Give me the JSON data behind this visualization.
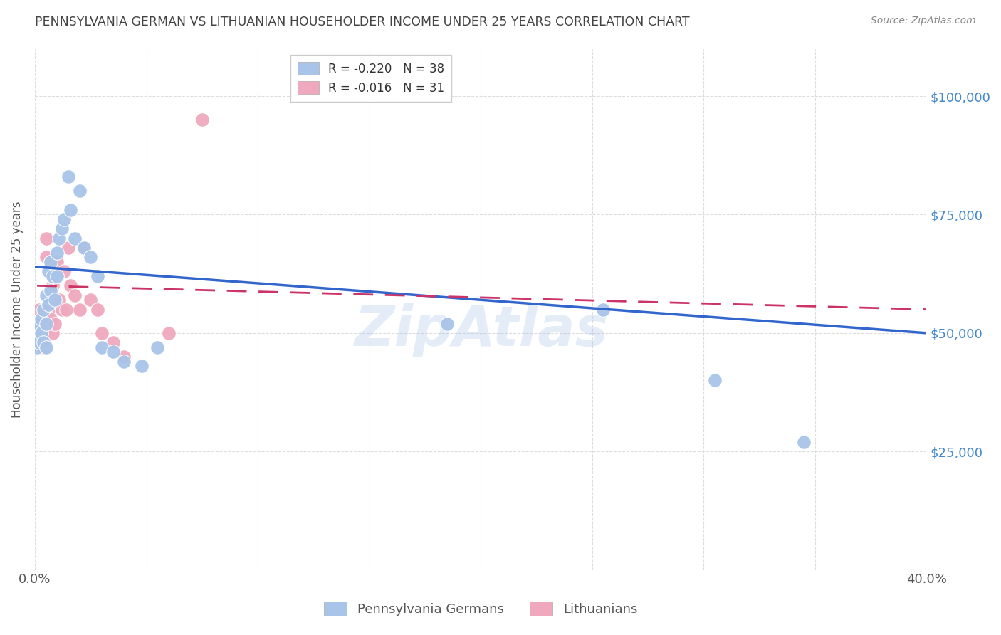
{
  "title": "PENNSYLVANIA GERMAN VS LITHUANIAN HOUSEHOLDER INCOME UNDER 25 YEARS CORRELATION CHART",
  "source": "Source: ZipAtlas.com",
  "ylabel": "Householder Income Under 25 years",
  "x_min": 0.0,
  "x_max": 0.4,
  "y_min": 0,
  "y_max": 110000,
  "y_ticks": [
    0,
    25000,
    50000,
    75000,
    100000
  ],
  "bottom_legend": [
    "Pennsylvania Germans",
    "Lithuanians"
  ],
  "bg_color": "#ffffff",
  "grid_color": "#dddddd",
  "blue_line_color": "#3366cc",
  "pink_line_color": "#cc3366",
  "blue_scatter_color": "#a8c4e8",
  "pink_scatter_color": "#f0a8be",
  "axis_label_color": "#4488cc",
  "title_color": "#444444",
  "source_color": "#888888",
  "pg_x": [
    0.001,
    0.001,
    0.002,
    0.002,
    0.003,
    0.003,
    0.004,
    0.004,
    0.005,
    0.005,
    0.005,
    0.006,
    0.006,
    0.007,
    0.007,
    0.008,
    0.009,
    0.01,
    0.01,
    0.011,
    0.012,
    0.013,
    0.015,
    0.016,
    0.018,
    0.02,
    0.022,
    0.025,
    0.028,
    0.03,
    0.035,
    0.04,
    0.048,
    0.055,
    0.185,
    0.255,
    0.305,
    0.345
  ],
  "pg_y": [
    50000,
    47000,
    52000,
    48000,
    53000,
    50000,
    55000,
    48000,
    58000,
    52000,
    47000,
    63000,
    56000,
    65000,
    59000,
    62000,
    57000,
    67000,
    62000,
    70000,
    72000,
    74000,
    83000,
    76000,
    70000,
    80000,
    68000,
    66000,
    62000,
    47000,
    46000,
    44000,
    43000,
    47000,
    52000,
    55000,
    40000,
    27000
  ],
  "lt_x": [
    0.001,
    0.001,
    0.002,
    0.003,
    0.003,
    0.004,
    0.005,
    0.005,
    0.006,
    0.007,
    0.007,
    0.008,
    0.008,
    0.009,
    0.01,
    0.011,
    0.012,
    0.013,
    0.014,
    0.015,
    0.016,
    0.018,
    0.02,
    0.022,
    0.025,
    0.028,
    0.03,
    0.035,
    0.04,
    0.06,
    0.075
  ],
  "lt_y": [
    50000,
    48000,
    55000,
    52000,
    50000,
    47000,
    70000,
    66000,
    55000,
    65000,
    53000,
    60000,
    50000,
    52000,
    65000,
    57000,
    55000,
    63000,
    55000,
    68000,
    60000,
    58000,
    55000,
    68000,
    57000,
    55000,
    50000,
    48000,
    45000,
    50000,
    95000
  ],
  "pg_line_x0": 0.0,
  "pg_line_x1": 0.4,
  "pg_line_y0": 64000,
  "pg_line_y1": 50000,
  "lt_line_x0": 0.001,
  "lt_line_x1": 0.4,
  "lt_line_y0": 60000,
  "lt_line_y1": 55000,
  "watermark_text": "ZipAtlas",
  "watermark_color": "#a8c4e8",
  "watermark_alpha": 0.32
}
